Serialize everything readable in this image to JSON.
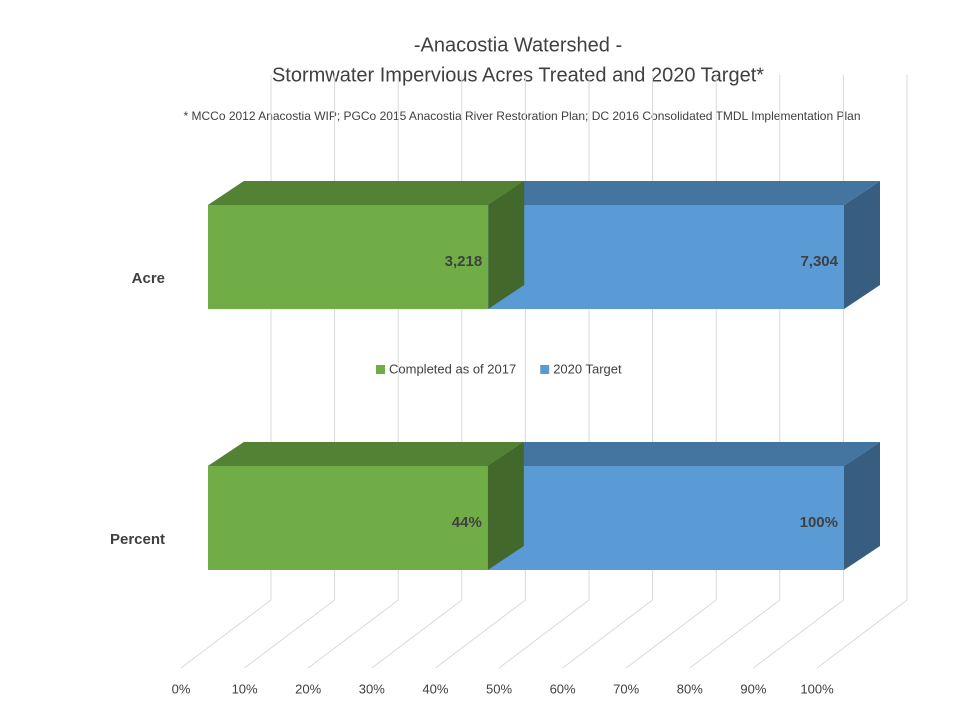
{
  "chart_data": {
    "type": "bar3d-overlap",
    "title": [
      "-Anacostia Watershed -",
      "Stormwater Impervious Acres Treated and 2020 Target*"
    ],
    "subtitle": "* MCCo 2012  Anacostia WIP; PGCo 2015  Anacostia River Restoration Plan; DC 2016  Consolidated TMDL Implementation Plan",
    "categories": [
      "Acre",
      "Percent"
    ],
    "series": [
      {
        "name": "Completed as of 2017",
        "color": "#70ad47",
        "values": [
          3218,
          44
        ],
        "value_labels": [
          "3,218",
          "44%"
        ]
      },
      {
        "name": "2020 Target",
        "color": "#5b9bd5",
        "values": [
          7304,
          100
        ],
        "value_labels": [
          "7,304",
          "100%"
        ]
      }
    ],
    "xlim": [
      0,
      100
    ],
    "xticks": [
      {
        "value": 0,
        "label": "0%"
      },
      {
        "value": 10,
        "label": "10%"
      },
      {
        "value": 20,
        "label": "20%"
      },
      {
        "value": 30,
        "label": "30%"
      },
      {
        "value": 40,
        "label": "40%"
      },
      {
        "value": 50,
        "label": "50%"
      },
      {
        "value": 60,
        "label": "60%"
      },
      {
        "value": 70,
        "label": "70%"
      },
      {
        "value": 80,
        "label": "80%"
      },
      {
        "value": 90,
        "label": "90%"
      },
      {
        "value": 100,
        "label": "100%"
      }
    ],
    "grid": true,
    "legend": "center"
  }
}
